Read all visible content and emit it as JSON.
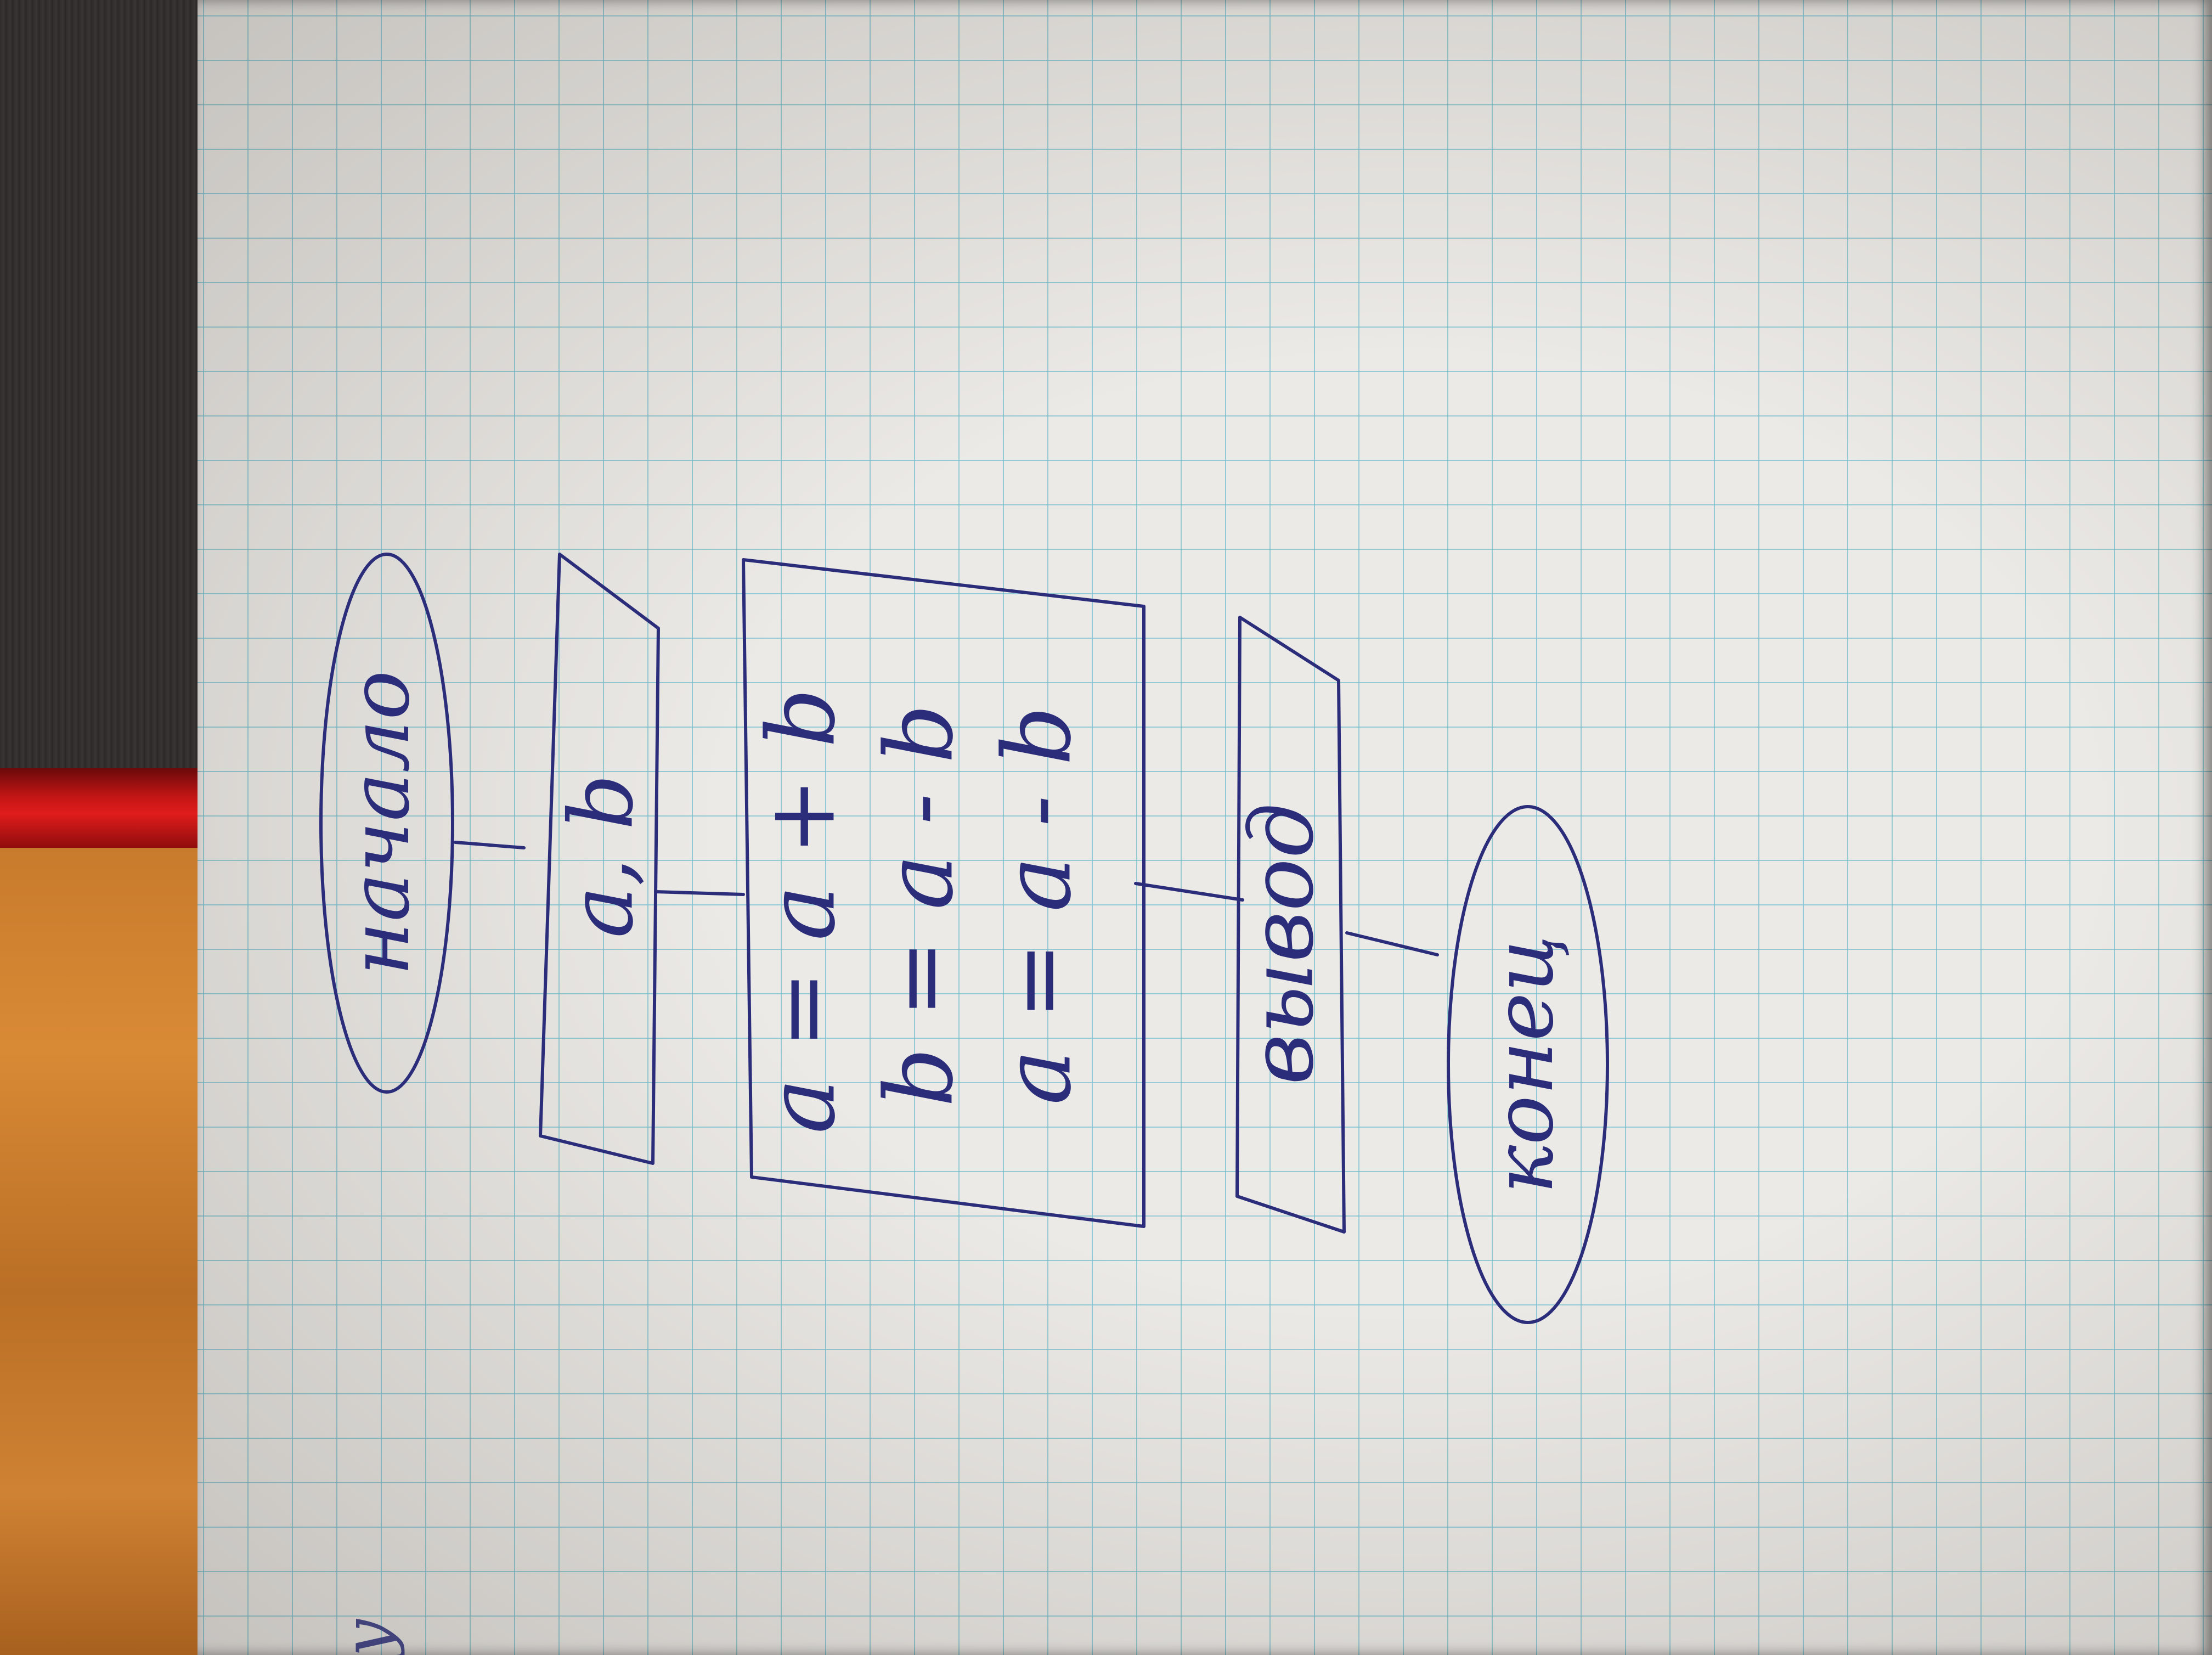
{
  "flowchart": {
    "start": "начало",
    "input": "a, b",
    "process": {
      "line1": "a = a + b",
      "line2": "b = a - b",
      "line3": "a = a - b"
    },
    "output": "вывод",
    "end": "конец"
  },
  "margin_mark": "y",
  "colors": {
    "ink": "#2b2d7a",
    "grid": "#78bece",
    "paper": "#eceae6"
  }
}
